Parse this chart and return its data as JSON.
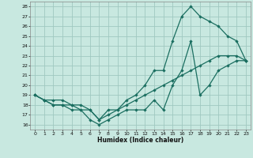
{
  "xlabel": "Humidex (Indice chaleur)",
  "bg_color": "#c8e8e0",
  "grid_color": "#a0c8c0",
  "line_color": "#1a6e60",
  "xlim": [
    -0.5,
    23.5
  ],
  "ylim": [
    15.5,
    28.5
  ],
  "xticks": [
    0,
    1,
    2,
    3,
    4,
    5,
    6,
    7,
    8,
    9,
    10,
    11,
    12,
    13,
    14,
    15,
    16,
    17,
    18,
    19,
    20,
    21,
    22,
    23
  ],
  "yticks": [
    16,
    17,
    18,
    19,
    20,
    21,
    22,
    23,
    24,
    25,
    26,
    27,
    28
  ],
  "line1_x": [
    0,
    1,
    2,
    3,
    4,
    5,
    6,
    7,
    8,
    9,
    10,
    11,
    12,
    13,
    14,
    15,
    16,
    17,
    18,
    19,
    20,
    21,
    22,
    23
  ],
  "line1_y": [
    19.0,
    18.5,
    18.0,
    18.0,
    17.5,
    17.5,
    16.5,
    16.0,
    16.5,
    17.0,
    17.5,
    17.5,
    17.5,
    18.5,
    17.5,
    20.0,
    21.5,
    24.5,
    19.0,
    20.0,
    21.5,
    22.0,
    22.5,
    22.5
  ],
  "line2_x": [
    0,
    1,
    2,
    3,
    4,
    5,
    6,
    7,
    8,
    9,
    10,
    11,
    12,
    13,
    14,
    15,
    16,
    17,
    18,
    19,
    20,
    21,
    22,
    23
  ],
  "line2_y": [
    19.0,
    18.5,
    18.0,
    18.0,
    18.0,
    17.5,
    17.5,
    16.5,
    17.0,
    17.5,
    18.0,
    18.5,
    19.0,
    19.5,
    20.0,
    20.5,
    21.0,
    21.5,
    22.0,
    22.5,
    23.0,
    23.0,
    23.0,
    22.5
  ],
  "line3_x": [
    0,
    1,
    2,
    3,
    4,
    5,
    6,
    7,
    8,
    9,
    10,
    11,
    12,
    13,
    14,
    15,
    16,
    17,
    18,
    19,
    20,
    21,
    22,
    23
  ],
  "line3_y": [
    19.0,
    18.5,
    18.5,
    18.5,
    18.0,
    18.0,
    17.5,
    16.5,
    17.5,
    17.5,
    18.5,
    19.0,
    20.0,
    21.5,
    21.5,
    24.5,
    27.0,
    28.0,
    27.0,
    26.5,
    26.0,
    25.0,
    24.5,
    22.5
  ]
}
